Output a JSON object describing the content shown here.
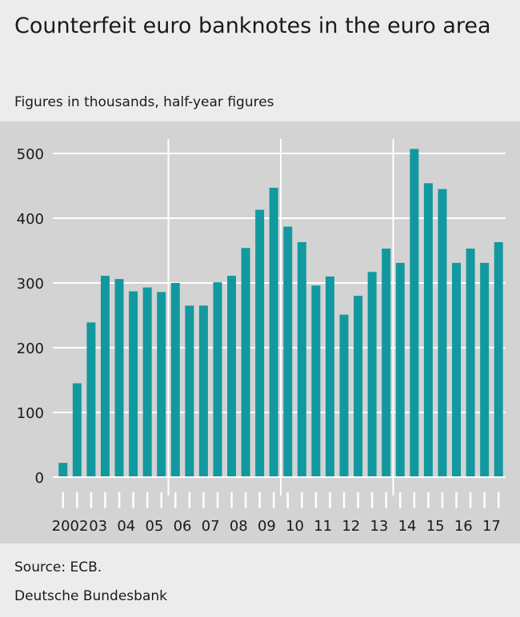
{
  "header": {
    "title": "Counterfeit euro banknotes in the euro area",
    "subtitle": "Figures in thousands, half-year figures"
  },
  "footer": {
    "source": "Source: ECB.",
    "organization": "Deutsche Bundesbank"
  },
  "colors": {
    "bar": "#12999f",
    "plot_background": "#d3d3d3",
    "page_background": "#ececec",
    "grid": "#ffffff"
  },
  "chart_data": {
    "type": "bar",
    "title": "Counterfeit euro banknotes in the euro area",
    "subtitle": "Figures in thousands, half-year figures",
    "xlabel": "",
    "ylabel": "",
    "ylim": [
      0,
      500
    ],
    "yticks": [
      0,
      100,
      200,
      300,
      400,
      500
    ],
    "grid": "horizontal",
    "year_labels": [
      "2002",
      "03",
      "04",
      "05",
      "06",
      "07",
      "08",
      "09",
      "10",
      "11",
      "12",
      "13",
      "14",
      "15",
      "16",
      "17"
    ],
    "categories": [
      "2002 H1",
      "2002 H2",
      "2003 H1",
      "2003 H2",
      "2004 H1",
      "2004 H2",
      "2005 H1",
      "2005 H2",
      "2006 H1",
      "2006 H2",
      "2007 H1",
      "2007 H2",
      "2008 H1",
      "2008 H2",
      "2009 H1",
      "2009 H2",
      "2010 H1",
      "2010 H2",
      "2011 H1",
      "2011 H2",
      "2012 H1",
      "2012 H2",
      "2013 H1",
      "2013 H2",
      "2014 H1",
      "2014 H2",
      "2015 H1",
      "2015 H2",
      "2016 H1",
      "2016 H2",
      "2017 H1",
      "2017 H2"
    ],
    "values": [
      22,
      145,
      239,
      311,
      306,
      287,
      293,
      286,
      300,
      265,
      265,
      301,
      311,
      354,
      413,
      447,
      387,
      363,
      296,
      310,
      251,
      280,
      317,
      353,
      331,
      507,
      454,
      445,
      331,
      353,
      331,
      363
    ]
  }
}
